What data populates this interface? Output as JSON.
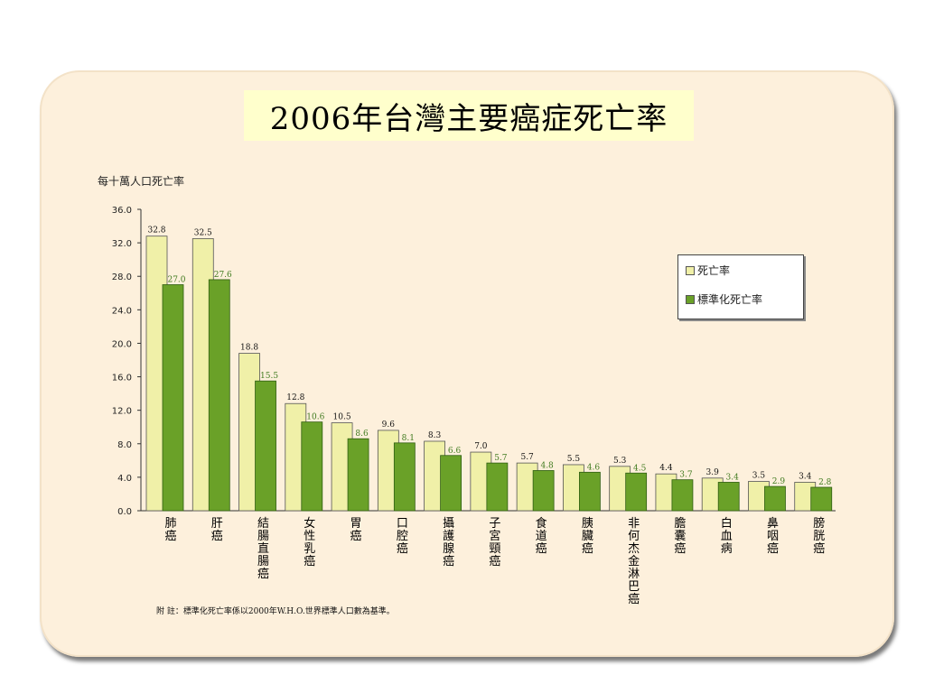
{
  "title": "2006年台灣主要癌症死亡率",
  "legend": {
    "series1_label": "死亡率",
    "series2_label": "標準化死亡率"
  },
  "footnote": "附 註：標準化死亡率係以2000年W.H.O.世界標準人口數為基準。",
  "colors": {
    "series1": "#f0f0a8",
    "series2": "#6aa128",
    "series2_label": "#3f7a1e"
  },
  "chart_data": {
    "type": "bar",
    "ylabel": "每十萬人口死亡率",
    "ylim": [
      0,
      36
    ],
    "yticks": [
      "0.0",
      "4.0",
      "8.0",
      "12.0",
      "16.0",
      "20.0",
      "24.0",
      "28.0",
      "32.0",
      "36.0"
    ],
    "categories": [
      "肺癌",
      "肝癌",
      "結腸直腸癌",
      "女性乳癌",
      "胃癌",
      "口腔癌",
      "攝護腺癌",
      "子宮頸癌",
      "食道癌",
      "胰臟癌",
      "非何杰金淋巴癌",
      "膽囊癌",
      "白血病",
      "鼻咽癌",
      "膀胱癌"
    ],
    "series": [
      {
        "name": "死亡率",
        "values": [
          32.8,
          32.5,
          18.8,
          12.8,
          10.5,
          9.6,
          8.3,
          7.0,
          5.7,
          5.5,
          5.3,
          4.4,
          3.9,
          3.5,
          3.4
        ]
      },
      {
        "name": "標準化死亡率",
        "values": [
          27.0,
          27.6,
          15.5,
          10.6,
          8.6,
          8.1,
          6.6,
          5.7,
          4.8,
          4.6,
          4.5,
          3.7,
          3.4,
          2.9,
          2.8
        ]
      }
    ],
    "grid": false,
    "legend_position": "right"
  }
}
